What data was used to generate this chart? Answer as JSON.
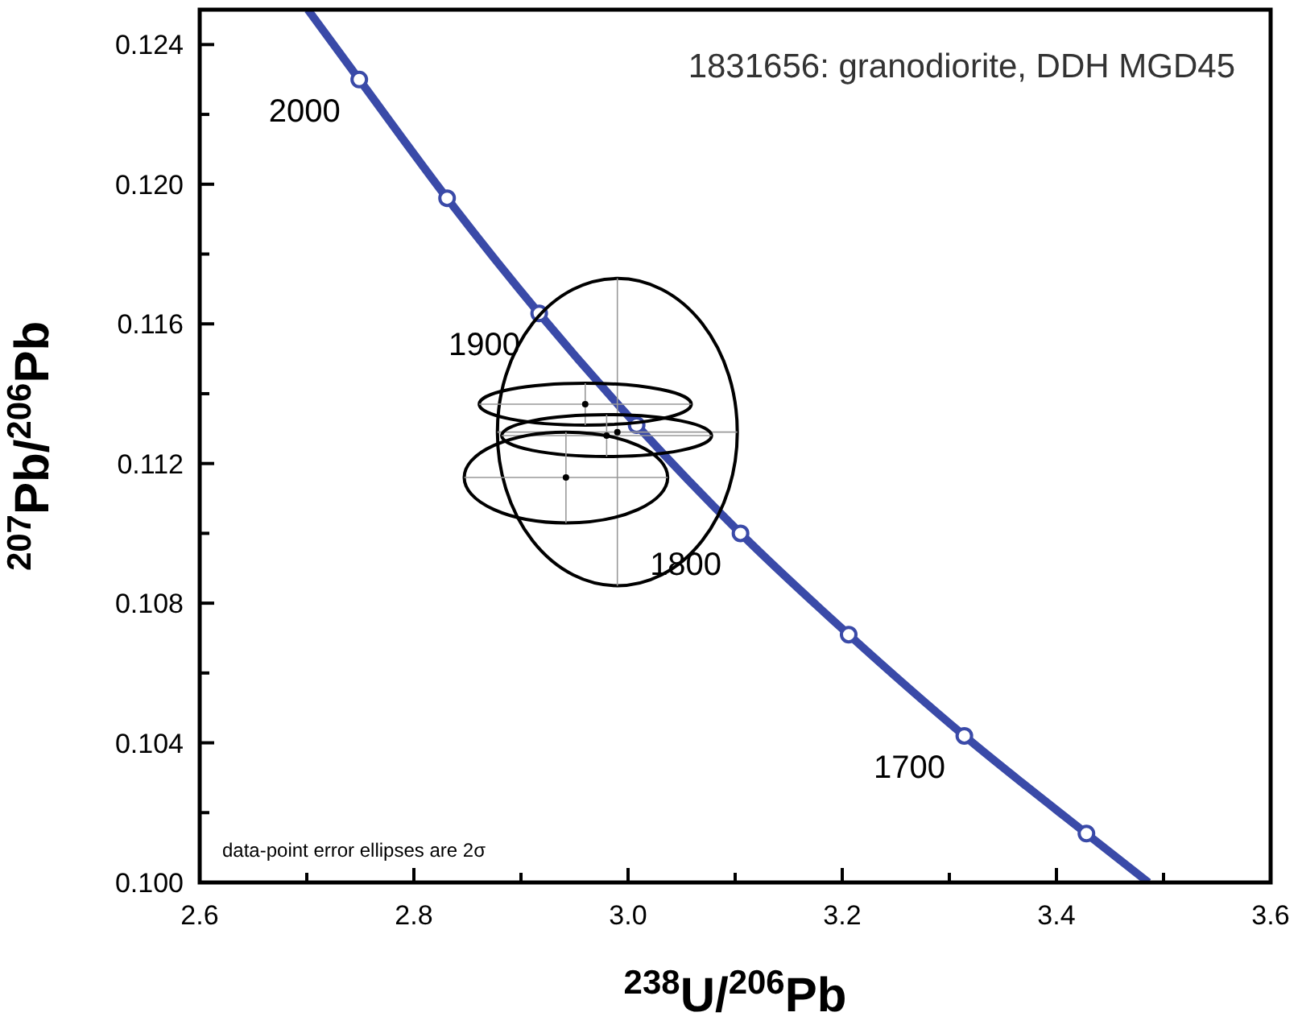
{
  "chart_data": {
    "type": "line",
    "title": "1831656: granodiorite, DDH MGD45",
    "xlabel": "$^{238}$U/$^{206}$Pb",
    "ylabel": "$^{207}$Pb/$^{206}$Pb",
    "xlim": [
      2.6,
      3.6
    ],
    "ylim": [
      0.1,
      0.125
    ],
    "xticks": [
      2.6,
      {
        "value": 2.7,
        "label": null
      },
      2.8,
      {
        "value": 2.9,
        "label": null
      },
      "3.0",
      {
        "value": 3.1,
        "label": null
      },
      3.2,
      {
        "value": 3.3,
        "label": null
      },
      3.4,
      {
        "value": 3.5,
        "label": null
      },
      3.6
    ],
    "yticks": [
      "0.100",
      {
        "value": 0.102,
        "label": null
      },
      {
        "value": 0.104,
        "label": "0.104"
      },
      {
        "value": 0.106,
        "label": null
      },
      {
        "value": 0.108,
        "label": "0.108"
      },
      {
        "value": 0.11,
        "label": null
      },
      {
        "value": 0.112,
        "label": "0.112"
      },
      {
        "value": 0.114,
        "label": null
      },
      {
        "value": 0.116,
        "label": "0.116"
      },
      {
        "value": 0.118,
        "label": null
      },
      {
        "value": 0.12,
        "label": "0.120"
      },
      {
        "value": 0.122,
        "label": null
      },
      {
        "value": 0.124,
        "label": "0.124"
      }
    ],
    "grid": false,
    "series": [
      {
        "color": "#3a4aa8",
        "marker": "none",
        "line_style": "solid",
        "x": [
          2.701,
          2.749,
          2.831,
          2.917,
          3.008,
          3.105,
          3.206,
          3.314,
          3.428,
          3.486
        ],
        "values": [
          0.125,
          0.123,
          0.1196,
          0.1163,
          0.1131,
          0.11,
          0.1071,
          0.1042,
          0.1014,
          0.1
        ]
      },
      {
        "type": "scatter",
        "color": "#3a4aa8",
        "marker": "circle",
        "x": [
          2.749,
          2.831,
          2.917,
          3.008,
          3.105,
          3.206,
          3.314,
          3.428
        ],
        "values": [
          0.123,
          0.1196,
          0.1163,
          0.1131,
          0.11,
          0.1071,
          0.1042,
          0.1014
        ]
      },
      {
        "type": "scatter",
        "color": "#000000",
        "marker": "circle",
        "x": [
          2.99,
          2.96,
          2.98,
          2.942
        ],
        "values": [
          0.1129,
          0.1137,
          0.1128,
          0.1116
        ],
        "xerrors": [
          0.112,
          0.099,
          0.098,
          0.095
        ],
        "errors": [
          0.0044,
          0.0006,
          0.0006,
          0.0013
        ]
      }
    ],
    "annotations": [
      {
        "text": "2000",
        "x": 2.749,
        "y": 0.123
      },
      {
        "text": "1900",
        "x": 2.917,
        "y": 0.1163
      },
      {
        "text": "1800",
        "x": 3.105,
        "y": 0.11
      },
      {
        "text": "1700",
        "x": 3.314,
        "y": 0.1042
      },
      "data-point error ellipses are 2σ"
    ]
  }
}
